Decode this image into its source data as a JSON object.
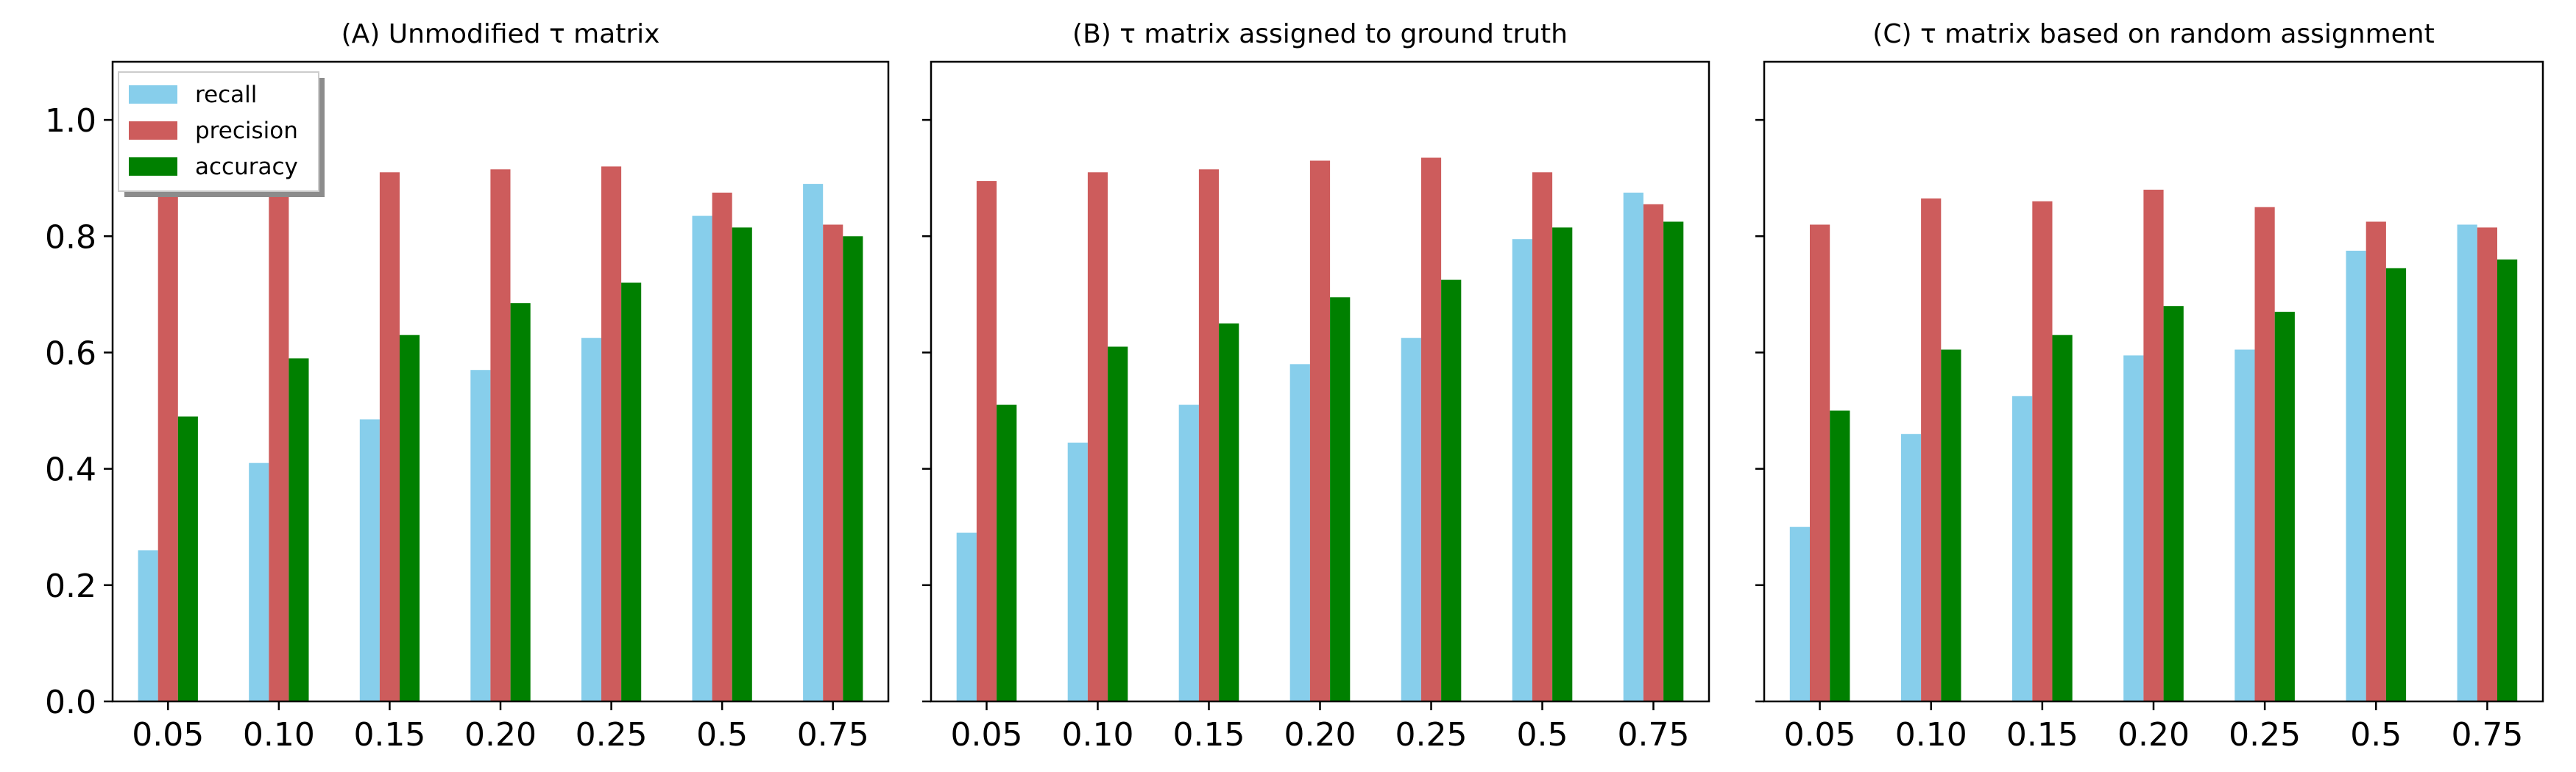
{
  "chart_data": [
    {
      "type": "bar",
      "title": "(A) Unmodified τ matrix",
      "xlabel": "",
      "ylabel": "",
      "categories": [
        "0.05",
        "0.10",
        "0.15",
        "0.20",
        "0.25",
        "0.5",
        "0.75"
      ],
      "ylim": [
        0,
        1.1
      ],
      "yticks": [
        "0.0",
        "0.2",
        "0.4",
        "0.6",
        "0.8",
        "1.0"
      ],
      "grid": false,
      "legend": "top-left",
      "series": [
        {
          "name": "recall",
          "color": "#87ceeb",
          "values": [
            0.26,
            0.41,
            0.485,
            0.57,
            0.625,
            0.835,
            0.89
          ]
        },
        {
          "name": "precision",
          "color": "#cd5c5c",
          "values": [
            0.88,
            0.89,
            0.91,
            0.915,
            0.92,
            0.875,
            0.82
          ]
        },
        {
          "name": "accuracy",
          "color": "#008000",
          "values": [
            0.49,
            0.59,
            0.63,
            0.685,
            0.72,
            0.815,
            0.8
          ]
        }
      ]
    },
    {
      "type": "bar",
      "title": "(B) τ matrix assigned to ground truth",
      "xlabel": "",
      "ylabel": "",
      "categories": [
        "0.05",
        "0.10",
        "0.15",
        "0.20",
        "0.25",
        "0.5",
        "0.75"
      ],
      "ylim": [
        0,
        1.1
      ],
      "grid": false,
      "series": [
        {
          "name": "recall",
          "color": "#87ceeb",
          "values": [
            0.29,
            0.445,
            0.51,
            0.58,
            0.625,
            0.795,
            0.875
          ]
        },
        {
          "name": "precision",
          "color": "#cd5c5c",
          "values": [
            0.895,
            0.91,
            0.915,
            0.93,
            0.935,
            0.91,
            0.855
          ]
        },
        {
          "name": "accuracy",
          "color": "#008000",
          "values": [
            0.51,
            0.61,
            0.65,
            0.695,
            0.725,
            0.815,
            0.825
          ]
        }
      ]
    },
    {
      "type": "bar",
      "title": "(C) τ matrix based on random assignment",
      "xlabel": "",
      "ylabel": "",
      "categories": [
        "0.05",
        "0.10",
        "0.15",
        "0.20",
        "0.25",
        "0.5",
        "0.75"
      ],
      "ylim": [
        0,
        1.1
      ],
      "grid": false,
      "series": [
        {
          "name": "recall",
          "color": "#87ceeb",
          "values": [
            0.3,
            0.46,
            0.525,
            0.595,
            0.605,
            0.775,
            0.82
          ]
        },
        {
          "name": "precision",
          "color": "#cd5c5c",
          "values": [
            0.82,
            0.865,
            0.86,
            0.88,
            0.85,
            0.825,
            0.815
          ]
        },
        {
          "name": "accuracy",
          "color": "#008000",
          "values": [
            0.5,
            0.605,
            0.63,
            0.68,
            0.67,
            0.745,
            0.76
          ]
        }
      ]
    }
  ]
}
